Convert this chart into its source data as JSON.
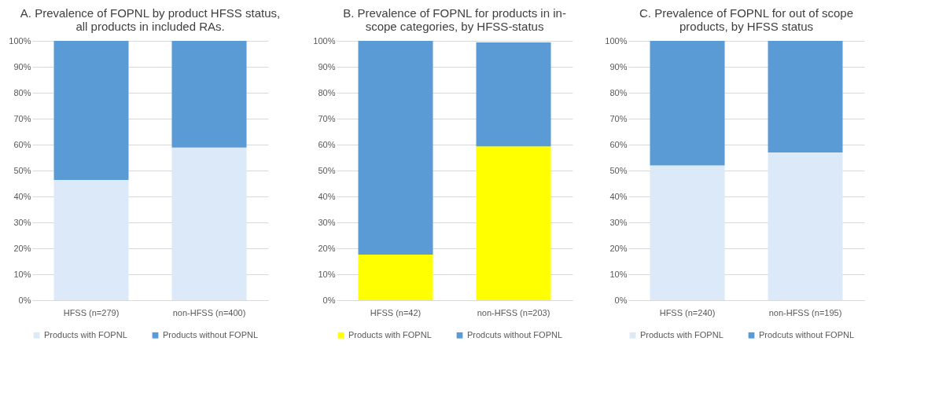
{
  "chart_data": [
    {
      "type": "bar",
      "title": "A. Prevalence of FOPNL by product HFSS status, all products in included RAs.",
      "categories": [
        "HFSS (n=279)",
        "non-HFSS (n=400)"
      ],
      "stacked": true,
      "legend": "bottom",
      "grid": "y",
      "ylim": [
        0,
        100
      ],
      "yticks": [
        {
          "value": 0,
          "label": "0%"
        },
        {
          "value": 10,
          "label": "10%"
        },
        {
          "value": 20,
          "label": "20%"
        },
        {
          "value": 30,
          "label": "30%"
        },
        {
          "value": 40,
          "label": "40%"
        },
        {
          "value": 50,
          "label": "50%"
        },
        {
          "value": 60,
          "label": "60%"
        },
        {
          "value": 70,
          "label": "70%"
        },
        {
          "value": 80,
          "label": "80%"
        },
        {
          "value": 90,
          "label": "90%"
        },
        {
          "value": 100,
          "label": "100%"
        }
      ],
      "series": [
        {
          "name": "Products with FOPNL",
          "color": "#dce9f8",
          "values": [
            46.4,
            58.9
          ]
        },
        {
          "name": "Products without FOPNL",
          "color": "#5b9bd5",
          "values": [
            53.6,
            41.1
          ]
        }
      ]
    },
    {
      "type": "bar",
      "title": "B. Prevalence of FOPNL for products in in-scope categories, by HFSS-status",
      "categories": [
        "HFSS (n=42)",
        "non-HFSS (n=203)"
      ],
      "stacked": true,
      "legend": "bottom",
      "grid": "y",
      "ylim": [
        0,
        100
      ],
      "yticks": [
        {
          "value": 0,
          "label": "0%"
        },
        {
          "value": 10,
          "label": "10%"
        },
        {
          "value": 20,
          "label": "20%"
        },
        {
          "value": 30,
          "label": "30%"
        },
        {
          "value": 40,
          "label": "40%"
        },
        {
          "value": 50,
          "label": "50%"
        },
        {
          "value": 60,
          "label": "60%"
        },
        {
          "value": 70,
          "label": "70%"
        },
        {
          "value": 80,
          "label": "80%"
        },
        {
          "value": 90,
          "label": "90%"
        },
        {
          "value": 100,
          "label": "100%"
        }
      ],
      "series": [
        {
          "name": "Products with FOPNL",
          "color": "#ffff00",
          "values": [
            17.6,
            59.3
          ]
        },
        {
          "name": "Prodcuts without FOPNL",
          "color": "#5b9bd5",
          "values": [
            82.4,
            40.1
          ]
        }
      ]
    },
    {
      "type": "bar",
      "title": "C. Prevalence of FOPNL for out of scope products, by HFSS status",
      "categories": [
        "HFSS (n=240)",
        "non-HFSS (n=195)"
      ],
      "stacked": true,
      "legend": "bottom",
      "grid": "y",
      "ylim": [
        0,
        100
      ],
      "yticks": [
        {
          "value": 0,
          "label": "0%"
        },
        {
          "value": 10,
          "label": "10%"
        },
        {
          "value": 20,
          "label": "20%"
        },
        {
          "value": 30,
          "label": "30%"
        },
        {
          "value": 40,
          "label": "40%"
        },
        {
          "value": 50,
          "label": "50%"
        },
        {
          "value": 60,
          "label": "60%"
        },
        {
          "value": 70,
          "label": "70%"
        },
        {
          "value": 80,
          "label": "80%"
        },
        {
          "value": 90,
          "label": "90%"
        },
        {
          "value": 100,
          "label": "100%"
        }
      ],
      "series": [
        {
          "name": "Products with FOPNL",
          "color": "#dce9f8",
          "values": [
            52.0,
            57.0
          ]
        },
        {
          "name": "Prodcuts without FOPNL",
          "color": "#5b9bd5",
          "values": [
            48.0,
            43.0
          ]
        }
      ]
    }
  ]
}
